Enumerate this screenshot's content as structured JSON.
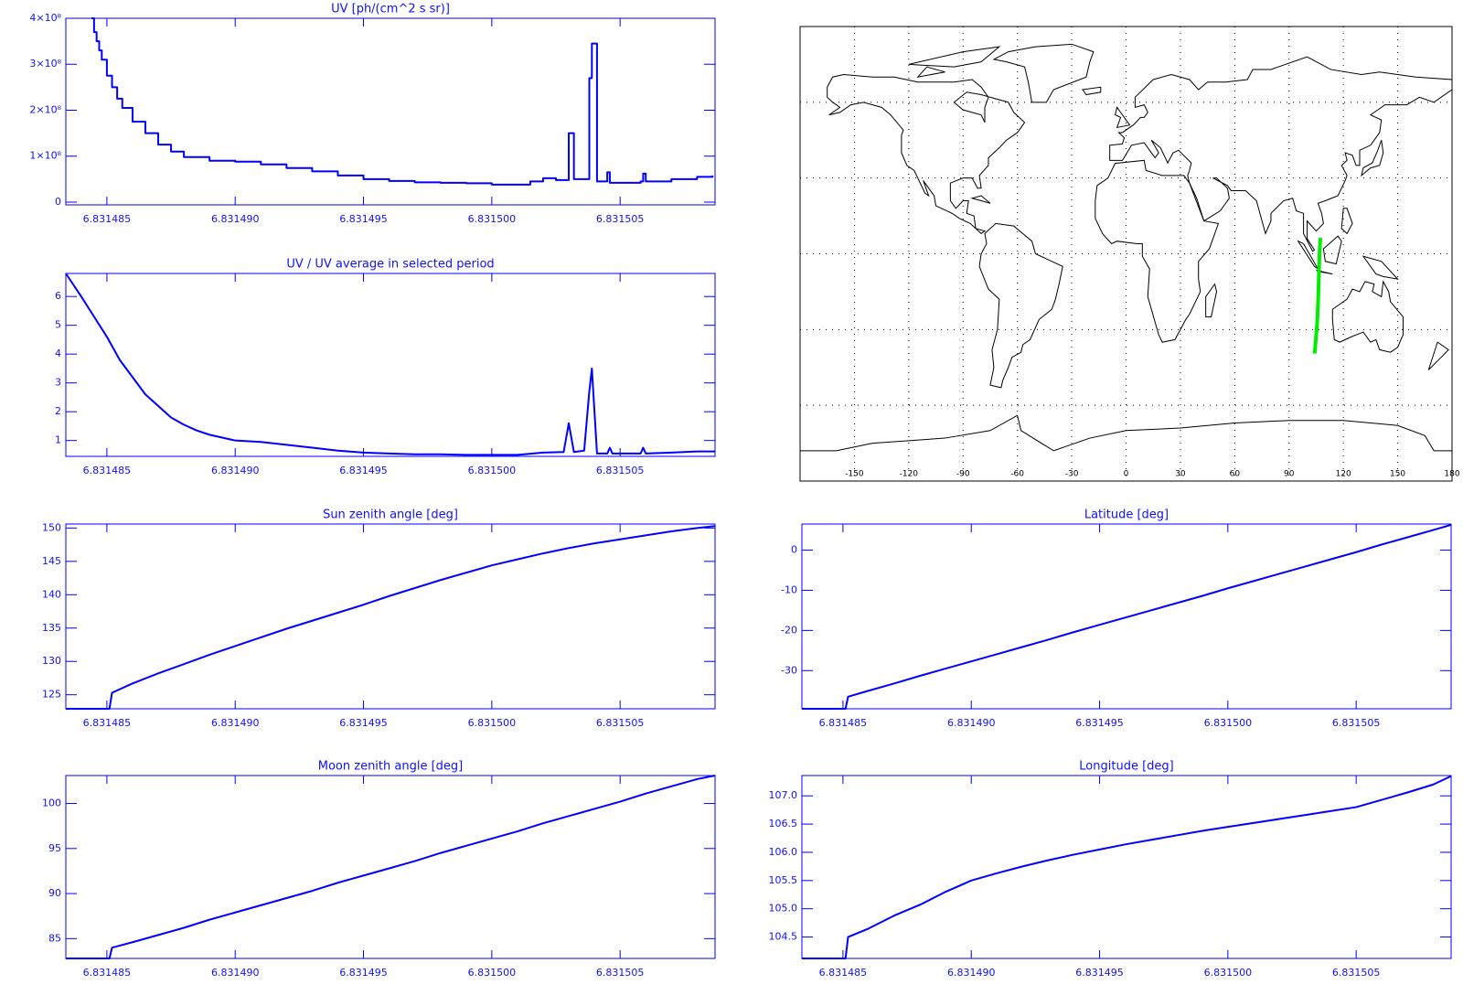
{
  "chart_data": [
    {
      "type": "step",
      "title": "UV [ph/(cm^2 s sr)]",
      "color": "#0000ff",
      "xlim": [
        6.8314834,
        6.8315087
      ],
      "xticks": [
        6.831485,
        {
          "value": 6.83149,
          "label": "6.831490"
        },
        6.831495,
        {
          "value": 6.8315,
          "label": "6.831500"
        },
        6.831505
      ],
      "ylim": [
        -6000000,
        400000000
      ],
      "yticks": [
        0,
        {
          "value": 100000000,
          "label": "1×10⁸"
        },
        {
          "value": 200000000,
          "label": "2×10⁸"
        },
        {
          "value": 300000000,
          "label": "3×10⁸"
        },
        {
          "value": 400000000,
          "label": "4×10⁸"
        }
      ],
      "x": [
        6.8314844,
        6.8314845,
        6.8314846,
        6.8314847,
        6.8314848,
        6.831485,
        6.8314852,
        6.8314854,
        6.8314856,
        6.831486,
        6.8314865,
        6.831487,
        6.8314875,
        6.831488,
        6.831489,
        6.83149,
        6.831491,
        6.831492,
        6.831493,
        6.831494,
        6.831495,
        6.831496,
        6.831497,
        6.831498,
        6.831499,
        6.8315,
        6.831501,
        6.8315015,
        6.831502,
        6.8315025,
        6.831503,
        6.8315032,
        6.8315038,
        6.8315039,
        6.8315041,
        6.8315045,
        6.8315046,
        6.8315058,
        6.8315059,
        6.831506,
        6.831507,
        6.831508,
        6.8315086
      ],
      "values": [
        400000000.0,
        370000000.0,
        350000000.0,
        330000000.0,
        310000000.0,
        275000000.0,
        250000000.0,
        225000000.0,
        205000000.0,
        175000000.0,
        150000000.0,
        125000000.0,
        110000000.0,
        98000000.0,
        90000000.0,
        88000000.0,
        82000000.0,
        74000000.0,
        67000000.0,
        58000000.0,
        50000000.0,
        46000000.0,
        43000000.0,
        42000000.0,
        41000000.0,
        38000000.0,
        38000000.0,
        45000000.0,
        52000000.0,
        48000000.0,
        150000000.0,
        50000000.0,
        270000000.0,
        345000000.0,
        45000000.0,
        65000000.0,
        42000000.0,
        45000000.0,
        62000000.0,
        45000000.0,
        50000000.0,
        55000000.0,
        58000000.0
      ]
    },
    {
      "type": "line",
      "title": "UV / UV average in selected period",
      "color": "#0000ff",
      "xlim": [
        6.8314834,
        6.8315087
      ],
      "xticks": [
        6.831485,
        {
          "value": 6.83149,
          "label": "6.831490"
        },
        6.831495,
        {
          "value": 6.8315,
          "label": "6.831500"
        },
        6.831505
      ],
      "ylim": [
        0.45,
        6.8
      ],
      "yticks": [
        1,
        2,
        3,
        4,
        5,
        6
      ],
      "x": [
        6.8314834,
        6.831484,
        6.8314845,
        6.831485,
        6.8314855,
        6.831486,
        6.8314865,
        6.831487,
        6.8314875,
        6.831488,
        6.8314885,
        6.831489,
        6.83149,
        6.831491,
        6.831492,
        6.831493,
        6.831494,
        6.831495,
        6.831496,
        6.831497,
        6.831498,
        6.831499,
        6.8315,
        6.831501,
        6.831502,
        6.8315028,
        6.831503,
        6.8315032,
        6.8315036,
        6.8315038,
        6.8315039,
        6.8315041,
        6.8315045,
        6.8315046,
        6.8315047,
        6.8315058,
        6.8315059,
        6.831506,
        6.831507,
        6.831508,
        6.8315087
      ],
      "values": [
        6.8,
        6.0,
        5.3,
        4.6,
        3.8,
        3.2,
        2.6,
        2.2,
        1.8,
        1.55,
        1.35,
        1.2,
        1.0,
        0.95,
        0.85,
        0.75,
        0.65,
        0.58,
        0.55,
        0.52,
        0.52,
        0.5,
        0.5,
        0.5,
        0.58,
        0.6,
        1.6,
        0.6,
        0.65,
        2.7,
        3.5,
        0.55,
        0.55,
        0.75,
        0.55,
        0.55,
        0.75,
        0.55,
        0.58,
        0.62,
        0.62
      ]
    },
    {
      "type": "map",
      "xlim": [
        -180,
        180
      ],
      "ylim": [
        -90,
        90
      ],
      "xticks": [
        -150,
        -120,
        -90,
        -60,
        -30,
        0,
        30,
        60,
        90,
        120,
        150,
        180
      ],
      "yticks": [
        -60,
        -30,
        0,
        30,
        60
      ],
      "ytick_labels": false,
      "grid": true,
      "track_color": "#00ee00"
    },
    {
      "type": "line",
      "title": "Sun zenith angle [deg]",
      "color": "#0000ff",
      "xlim": [
        6.8314834,
        6.8315087
      ],
      "xticks": [
        6.831485,
        {
          "value": 6.83149,
          "label": "6.831490"
        },
        6.831495,
        {
          "value": 6.8315,
          "label": "6.831500"
        },
        6.831505
      ],
      "ylim": [
        122.9,
        150.6
      ],
      "yticks": [
        125,
        130,
        135,
        140,
        145,
        150
      ],
      "x": [
        6.8314834,
        6.8314851,
        6.8314852,
        6.831486,
        6.831487,
        6.831488,
        6.831489,
        6.83149,
        6.831491,
        6.831492,
        6.831493,
        6.831494,
        6.831495,
        6.831496,
        6.831497,
        6.831498,
        6.831499,
        6.8315,
        6.831501,
        6.831502,
        6.831503,
        6.831504,
        6.831505,
        6.831506,
        6.831507,
        6.831508,
        6.8315087
      ],
      "values": [
        122.9,
        122.9,
        125.3,
        126.7,
        128.2,
        129.6,
        131.0,
        132.3,
        133.6,
        134.9,
        136.1,
        137.3,
        138.5,
        139.8,
        141.0,
        142.2,
        143.3,
        144.4,
        145.3,
        146.2,
        147.0,
        147.7,
        148.3,
        148.9,
        149.5,
        150.0,
        150.3
      ]
    },
    {
      "type": "line",
      "title": "Latitude [deg]",
      "color": "#0000ff",
      "xlim": [
        6.8314834,
        6.8315087
      ],
      "xticks": [
        6.831485,
        {
          "value": 6.83149,
          "label": "6.831490"
        },
        6.831495,
        {
          "value": 6.8315,
          "label": "6.831500"
        },
        6.831505
      ],
      "ylim": [
        -39.5,
        6.5
      ],
      "yticks": [
        -30,
        -20,
        -10,
        0
      ],
      "x": [
        6.8314834,
        6.8314851,
        6.8314852,
        6.831486,
        6.831487,
        6.831488,
        6.831489,
        6.83149,
        6.831491,
        6.831492,
        6.831493,
        6.831494,
        6.831495,
        6.831496,
        6.831497,
        6.831498,
        6.831499,
        6.8315,
        6.831501,
        6.831502,
        6.831503,
        6.831504,
        6.831505,
        6.831506,
        6.831507,
        6.831508,
        6.8315087
      ],
      "values": [
        -39.5,
        -39.5,
        -36.5,
        -35.0,
        -33.2,
        -31.3,
        -29.5,
        -27.7,
        -25.9,
        -24.1,
        -22.3,
        -20.4,
        -18.6,
        -16.8,
        -15.0,
        -13.2,
        -11.4,
        -9.5,
        -7.7,
        -5.9,
        -4.1,
        -2.3,
        -0.5,
        1.4,
        3.2,
        5.0,
        6.3
      ]
    },
    {
      "type": "line",
      "title": "Moon zenith angle [deg]",
      "color": "#0000ff",
      "xlim": [
        6.8314834,
        6.8315087
      ],
      "xticks": [
        6.831485,
        {
          "value": 6.83149,
          "label": "6.831490"
        },
        6.831495,
        {
          "value": 6.8315,
          "label": "6.831500"
        },
        6.831505
      ],
      "ylim": [
        82.8,
        103.1
      ],
      "yticks": [
        85,
        90,
        95,
        100
      ],
      "x": [
        6.8314834,
        6.8314851,
        6.8314852,
        6.831486,
        6.831487,
        6.831488,
        6.831489,
        6.83149,
        6.831491,
        6.831492,
        6.831493,
        6.831494,
        6.831495,
        6.831496,
        6.831497,
        6.831498,
        6.831499,
        6.8315,
        6.831501,
        6.831502,
        6.831503,
        6.831504,
        6.831505,
        6.831506,
        6.831507,
        6.831508,
        6.8315087
      ],
      "values": [
        82.8,
        82.8,
        84.0,
        84.6,
        85.4,
        86.2,
        87.1,
        87.9,
        88.7,
        89.5,
        90.3,
        91.2,
        92.0,
        92.8,
        93.6,
        94.5,
        95.3,
        96.1,
        96.9,
        97.8,
        98.6,
        99.4,
        100.2,
        101.1,
        101.9,
        102.7,
        103.1
      ]
    },
    {
      "type": "line",
      "title": "Longitude [deg]",
      "color": "#0000ff",
      "xlim": [
        6.8314834,
        6.8315087
      ],
      "xticks": [
        6.831485,
        {
          "value": 6.83149,
          "label": "6.831490"
        },
        6.831495,
        {
          "value": 6.8315,
          "label": "6.831500"
        },
        6.831505
      ],
      "ylim": [
        104.12,
        107.36
      ],
      "yticks": [
        104.5,
        {
          "value": 105,
          "label": "105.0"
        },
        105.5,
        {
          "value": 106,
          "label": "106.0"
        },
        106.5,
        {
          "value": 107,
          "label": "107.0"
        }
      ],
      "x": [
        6.8314834,
        6.8314851,
        6.8314852,
        6.831486,
        6.831487,
        6.831488,
        6.831489,
        6.83149,
        6.831491,
        6.831492,
        6.831493,
        6.831494,
        6.831495,
        6.831496,
        6.831497,
        6.831498,
        6.831499,
        6.8315,
        6.831501,
        6.831502,
        6.831503,
        6.831504,
        6.831505,
        6.831506,
        6.831507,
        6.831508,
        6.8315087
      ],
      "values": [
        104.12,
        104.12,
        104.5,
        104.65,
        104.88,
        105.07,
        105.3,
        105.5,
        105.63,
        105.75,
        105.86,
        105.96,
        106.05,
        106.14,
        106.22,
        106.3,
        106.38,
        106.45,
        106.52,
        106.59,
        106.66,
        106.73,
        106.8,
        106.93,
        107.06,
        107.2,
        107.35
      ]
    }
  ]
}
